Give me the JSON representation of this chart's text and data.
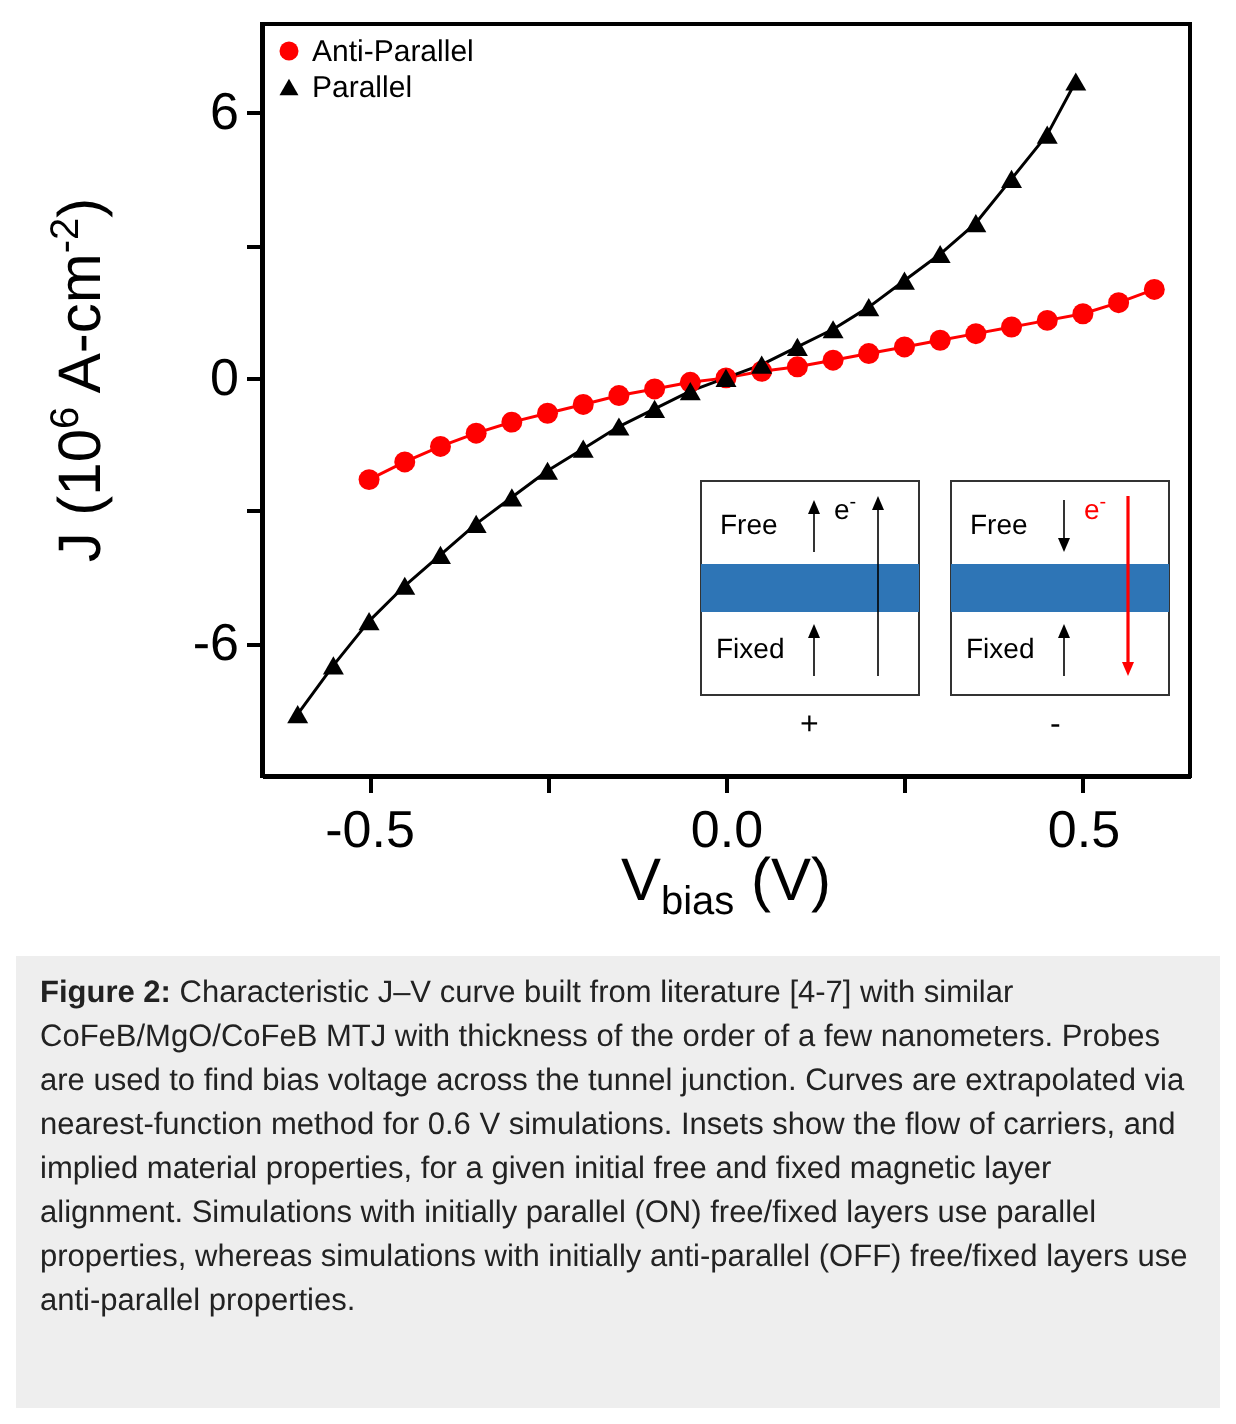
{
  "chart_data": {
    "type": "line",
    "xlabel": "V$_{bias}$ (V)",
    "ylabel": "J (10$^{6}$ A-cm$^{-2}$)",
    "xlim": [
      -0.65,
      0.65
    ],
    "xticks": [
      {
        "value": -0.5,
        "label": "-0.5"
      },
      {
        "value": -0.25,
        "label": null
      },
      {
        "value": 0,
        "label": "0.0"
      },
      {
        "value": 0.25,
        "label": null
      },
      {
        "value": 0.5,
        "label": "0.5"
      }
    ],
    "ylim": [
      -9,
      8
    ],
    "yticks": [
      -6,
      {
        "value": -3,
        "label": null
      },
      0,
      {
        "value": 3,
        "label": null
      },
      6
    ],
    "grid": false,
    "legend": "top left",
    "line_style": "solid",
    "series": [
      {
        "name": "Anti-Parallel",
        "color": "#ff0000",
        "marker": "circle",
        "x": [
          -0.5,
          -0.45,
          -0.4,
          -0.35,
          -0.3,
          -0.25,
          -0.2,
          -0.15,
          -0.1,
          -0.05,
          0,
          0.05,
          0.1,
          0.15,
          0.2,
          0.25,
          0.3,
          0.35,
          0.4,
          0.45,
          0.5,
          0.55,
          0.6
        ],
        "values": [
          -2.3,
          -1.9,
          -1.55,
          -1.25,
          -1.0,
          -0.8,
          -0.6,
          -0.4,
          -0.25,
          -0.1,
          0,
          0.15,
          0.25,
          0.4,
          0.55,
          0.7,
          0.85,
          1.0,
          1.15,
          1.3,
          1.45,
          1.7,
          2.0
        ]
      },
      {
        "name": "Parallel",
        "color": "#000000",
        "marker": "triangle",
        "x": [
          -0.6,
          -0.55,
          -0.5,
          -0.45,
          -0.4,
          -0.35,
          -0.3,
          -0.25,
          -0.2,
          -0.15,
          -0.1,
          -0.05,
          0,
          0.05,
          0.1,
          0.15,
          0.2,
          0.25,
          0.3,
          0.35,
          0.4,
          0.45,
          0.49
        ],
        "values": [
          -7.6,
          -6.5,
          -5.5,
          -4.7,
          -4.0,
          -3.3,
          -2.7,
          -2.1,
          -1.6,
          -1.1,
          -0.7,
          -0.3,
          0,
          0.3,
          0.7,
          1.1,
          1.6,
          2.2,
          2.8,
          3.5,
          4.5,
          5.5,
          6.7
        ]
      }
    ],
    "annotations": [
      "Free",
      "e$^{-}$",
      "Fixed",
      "+",
      "Free",
      "e$^{-}$",
      "Fixed",
      "-",
      "Figure 2: Characteristic J–V curve built from literature [4-7] with similar CoFeB/MgO/CoFeB MTJ with thickness of the order of a few nanometers. Probes are used to find bias voltage across the tunnel junction. Curves are extrapolated via nearest-function method for 0.6 V simulations. Insets show the flow of carriers, and implied material properties, for a given initial free and fixed magnetic layer alignment. Simulations with initially parallel (ON) free/fixed layers use parallel properties, whereas simulations with initially anti-parallel (OFF) free/fixed layers use anti-parallel properties."
    ]
  }
}
